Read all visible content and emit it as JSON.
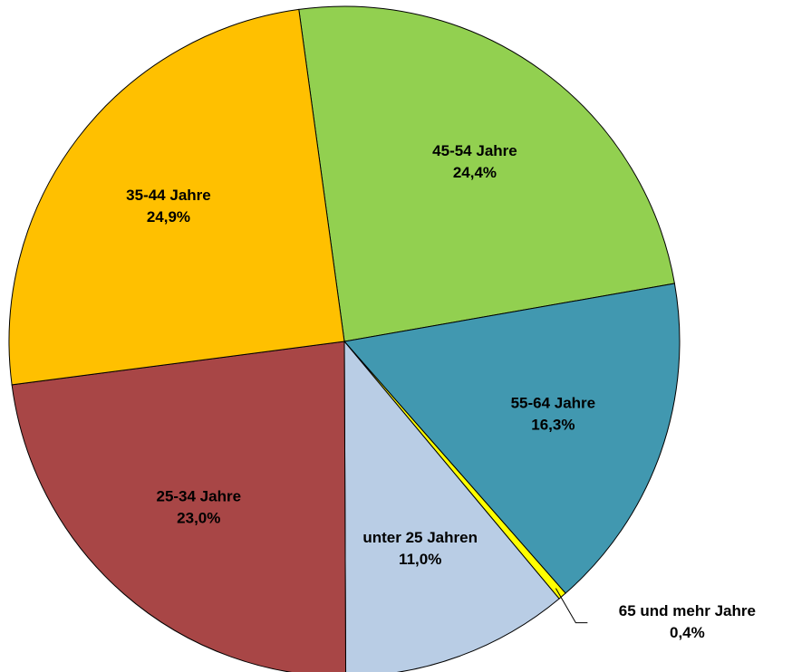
{
  "chart_data": {
    "type": "pie",
    "categories": [
      "45-54 Jahre",
      "55-64 Jahre",
      "65 und mehr Jahre",
      "unter 25 Jahren",
      "25-34 Jahre",
      "35-44 Jahre"
    ],
    "values": [
      24.4,
      16.3,
      0.4,
      11.0,
      23.0,
      24.9
    ],
    "value_labels": [
      "24,4%",
      "16,3%",
      "0,4%",
      "11,0%",
      "23,0%",
      "24,9%"
    ],
    "colors": [
      "#92d050",
      "#4198b0",
      "#ffff00",
      "#b9cde5",
      "#a84646",
      "#ffc000"
    ]
  }
}
